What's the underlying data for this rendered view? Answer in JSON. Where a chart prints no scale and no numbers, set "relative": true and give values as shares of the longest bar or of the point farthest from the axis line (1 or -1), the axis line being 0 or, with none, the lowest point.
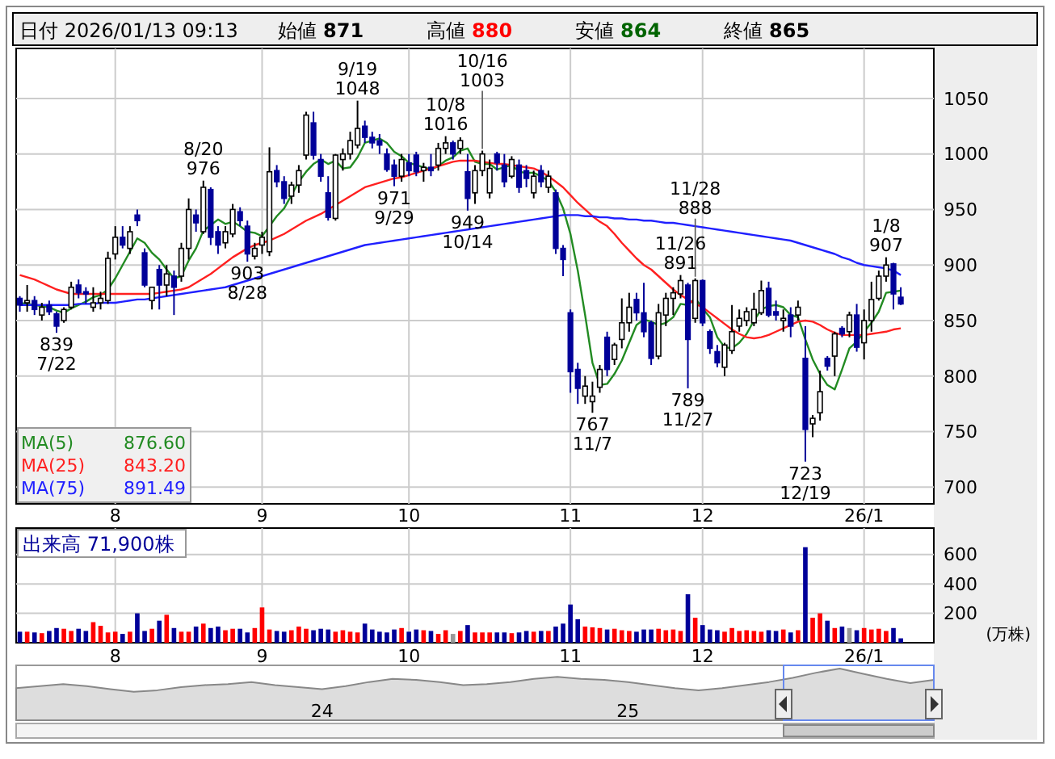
{
  "chart_data": [
    {
      "type": "candlestick",
      "title": "日付 2026/01/13 09:13",
      "colors": [
        "#000099",
        "#ffffff",
        "#000099",
        "#ffffff",
        "#000099",
        "#000099",
        "#ffffff",
        "#ffffff",
        "#000099",
        "#000099",
        "#ffffff",
        "#ffffff",
        "#ffffff",
        "#ffffff",
        "#000099",
        "#ffffff",
        "#000099",
        "#000099",
        "#ffffff",
        "#000099",
        "#ffffff",
        "#000099",
        "#ffffff",
        "#ffffff",
        "#000099",
        "#ffffff",
        "#000099",
        "#000099",
        "#ffffff",
        "#ffffff",
        "#000099",
        "#000099",
        "#ffffff",
        "#ffffff",
        "#ffffff",
        "#000099",
        "#000099",
        "#ffffff",
        "#ffffff",
        "#ffffff",
        "#000099",
        "#000099",
        "#000099",
        "#ffffff",
        "#ffffff",
        "#ffffff",
        "#ffffff",
        "#000099",
        "#000099",
        "#000099",
        "#000099",
        "#000099",
        "#ffffff",
        "#000099",
        "#000099",
        "#ffffff",
        "#000099",
        "#ffffff",
        "#ffffff",
        "#000099",
        "#ffffff",
        "#000099",
        "#ffffff",
        "#ffffff",
        "#ffffff",
        "#000099",
        "#000099",
        "#ffffff",
        "#000099",
        "#000099",
        "#ffffff",
        "#000099",
        "#ffffff",
        "#000099",
        "#000099",
        "#000099",
        "#000099",
        "#ffffff",
        "#ffffff",
        "#ffffff",
        "#000099",
        "#ffffff",
        "#ffffff",
        "#ffffff",
        "#000099",
        "#000099",
        "#000099",
        "#ffffff",
        "#ffffff",
        "#ffffff",
        "#ffffff",
        "#000099",
        "#ffffff",
        "#000099",
        "#000099",
        "#000099",
        "#ffffff",
        "#ffffff",
        "#ffffff",
        "#ffffff",
        "#ffffff",
        "#ffffff",
        "#000099",
        "#000099",
        "#ffffff",
        "#000099",
        "#ffffff",
        "#000099",
        "#ffffff",
        "#ffffff",
        "#000099",
        "#ffffff",
        "#000099",
        "#ffffff",
        "#000099",
        "#ffffff",
        "#ffffff",
        "#ffffff",
        "#ffffff",
        "#000099",
        "#000099"
      ],
      "grid": true,
      "ylim": [
        685,
        1095
      ],
      "yticks": [
        700,
        750,
        800,
        850,
        900,
        950,
        1000,
        1050
      ],
      "categories": [
        null,
        null,
        null,
        null,
        null,
        null,
        null,
        null,
        null,
        null,
        null,
        null,
        null,
        "8",
        null,
        null,
        null,
        null,
        null,
        null,
        null,
        null,
        null,
        null,
        null,
        null,
        null,
        null,
        null,
        null,
        null,
        null,
        null,
        "9",
        null,
        null,
        null,
        null,
        null,
        null,
        null,
        null,
        null,
        null,
        null,
        null,
        null,
        null,
        null,
        null,
        null,
        null,
        null,
        "10",
        null,
        null,
        null,
        null,
        null,
        null,
        null,
        null,
        null,
        null,
        null,
        null,
        null,
        null,
        null,
        null,
        null,
        null,
        null,
        null,
        null,
        "11",
        null,
        null,
        null,
        null,
        null,
        null,
        null,
        null,
        null,
        null,
        null,
        null,
        null,
        null,
        null,
        null,
        null,
        "12",
        null,
        null,
        null,
        null,
        null,
        null,
        null,
        null,
        null,
        null,
        null,
        null,
        null,
        null,
        null,
        null,
        null,
        null,
        null,
        null,
        null,
        "26/1",
        null,
        null,
        null,
        null,
        null
      ],
      "ohlc": [
        [
          870,
          872,
          858,
          864
        ],
        [
          866,
          882,
          858,
          868
        ],
        [
          868,
          872,
          855,
          860
        ],
        [
          855,
          866,
          850,
          862
        ],
        [
          864,
          868,
          855,
          858
        ],
        [
          856,
          858,
          839,
          845
        ],
        [
          850,
          862,
          848,
          860
        ],
        [
          862,
          885,
          860,
          880
        ],
        [
          882,
          887,
          870,
          875
        ],
        [
          876,
          880,
          865,
          874
        ],
        [
          862,
          880,
          858,
          866
        ],
        [
          866,
          876,
          860,
          870
        ],
        [
          868,
          912,
          865,
          906
        ],
        [
          910,
          935,
          905,
          925
        ],
        [
          925,
          935,
          915,
          918
        ],
        [
          915,
          935,
          910,
          930
        ],
        [
          945,
          950,
          935,
          940
        ],
        [
          911,
          915,
          880,
          882
        ],
        [
          868,
          880,
          860,
          880
        ],
        [
          896,
          900,
          860,
          882
        ],
        [
          882,
          900,
          872,
          892
        ],
        [
          890,
          895,
          855,
          880
        ],
        [
          890,
          920,
          885,
          915
        ],
        [
          915,
          960,
          905,
          950
        ],
        [
          945,
          950,
          930,
          938
        ],
        [
          930,
          976,
          928,
          970
        ],
        [
          968,
          970,
          918,
          925
        ],
        [
          930,
          935,
          910,
          918
        ],
        [
          920,
          935,
          915,
          930
        ],
        [
          928,
          955,
          925,
          950
        ],
        [
          948,
          952,
          935,
          940
        ],
        [
          935,
          940,
          903,
          910
        ],
        [
          908,
          920,
          905,
          915
        ],
        [
          918,
          930,
          910,
          925
        ],
        [
          912,
          1006,
          908,
          984
        ],
        [
          985,
          990,
          970,
          975
        ],
        [
          975,
          980,
          955,
          960
        ],
        [
          962,
          975,
          955,
          972
        ],
        [
          972,
          990,
          965,
          985
        ],
        [
          999,
          1038,
          995,
          1035
        ],
        [
          1028,
          1038,
          995,
          999
        ],
        [
          995,
          1000,
          975,
          980
        ],
        [
          965,
          980,
          940,
          943
        ],
        [
          942,
          1000,
          940,
          999
        ],
        [
          995,
          1005,
          985,
          1000
        ],
        [
          1000,
          1020,
          995,
          1012
        ],
        [
          1008,
          1048,
          1005,
          1023
        ],
        [
          1025,
          1030,
          1010,
          1015
        ],
        [
          1015,
          1020,
          1005,
          1010
        ],
        [
          1012,
          1018,
          1000,
          1008
        ],
        [
          1000,
          1005,
          984,
          986
        ],
        [
          990,
          995,
          971,
          980
        ],
        [
          980,
          1000,
          975,
          995
        ],
        [
          992,
          1000,
          980,
          985
        ],
        [
          999,
          1002,
          980,
          984
        ],
        [
          985,
          992,
          975,
          988
        ],
        [
          988,
          1000,
          980,
          985
        ],
        [
          990,
          1010,
          985,
          1005
        ],
        [
          1005,
          1016,
          1000,
          1010
        ],
        [
          1010,
          1012,
          995,
          1000
        ],
        [
          1005,
          1015,
          1000,
          1012
        ],
        [
          984,
          1000,
          949,
          960
        ],
        [
          965,
          990,
          955,
          985
        ],
        [
          985,
          1003,
          980,
          1000
        ],
        [
          965,
          995,
          960,
          987
        ],
        [
          1000,
          1002,
          985,
          992
        ],
        [
          990,
          1000,
          970,
          975
        ],
        [
          980,
          998,
          978,
          995
        ],
        [
          990,
          995,
          965,
          970
        ],
        [
          985,
          990,
          970,
          978
        ],
        [
          965,
          985,
          960,
          980
        ],
        [
          985,
          990,
          970,
          975
        ],
        [
          970,
          985,
          965,
          980
        ],
        [
          965,
          968,
          910,
          915
        ],
        [
          915,
          918,
          890,
          905
        ],
        [
          857,
          860,
          785,
          804
        ],
        [
          806,
          812,
          775,
          789
        ],
        [
          782,
          800,
          775,
          791
        ],
        [
          777,
          795,
          767,
          782
        ],
        [
          790,
          810,
          785,
          806
        ],
        [
          835,
          840,
          800,
          806
        ],
        [
          815,
          830,
          810,
          828
        ],
        [
          833,
          870,
          825,
          848
        ],
        [
          848,
          875,
          840,
          862
        ],
        [
          869,
          875,
          850,
          857
        ],
        [
          857,
          884,
          835,
          840
        ],
        [
          848,
          850,
          810,
          816
        ],
        [
          818,
          865,
          815,
          857
        ],
        [
          855,
          875,
          845,
          870
        ],
        [
          870,
          880,
          855,
          875
        ],
        [
          874,
          891,
          870,
          886
        ],
        [
          882,
          884,
          789,
          833
        ],
        [
          852,
          888,
          848,
          886
        ],
        [
          886,
          887,
          845,
          848
        ],
        [
          840,
          842,
          820,
          825
        ],
        [
          822,
          828,
          808,
          812
        ],
        [
          808,
          830,
          800,
          828
        ],
        [
          823,
          864,
          820,
          840
        ],
        [
          845,
          860,
          840,
          852
        ],
        [
          850,
          862,
          845,
          858
        ],
        [
          848,
          875,
          845,
          860
        ],
        [
          857,
          886,
          855,
          877
        ],
        [
          879,
          885,
          853,
          855
        ],
        [
          858,
          868,
          850,
          855
        ],
        [
          850,
          860,
          840,
          852
        ],
        [
          855,
          862,
          835,
          845
        ],
        [
          855,
          868,
          850,
          862
        ],
        [
          816,
          845,
          723,
          752
        ],
        [
          757,
          765,
          745,
          762
        ],
        [
          767,
          805,
          760,
          786
        ],
        [
          816,
          818,
          805,
          809
        ],
        [
          818,
          840,
          800,
          838
        ],
        [
          843,
          845,
          835,
          838
        ],
        [
          840,
          858,
          835,
          855
        ],
        [
          855,
          865,
          822,
          826
        ],
        [
          830,
          860,
          815,
          850
        ],
        [
          850,
          885,
          840,
          869
        ],
        [
          870,
          895,
          868,
          890
        ],
        [
          890,
          907,
          885,
          900
        ],
        [
          901,
          902,
          860,
          874
        ],
        [
          871,
          880,
          864,
          865
        ]
      ],
      "series": [
        {
          "type": "line",
          "name": "MA(5) 876.60",
          "color": "#228b22",
          "values": [
            866,
            865,
            864,
            863,
            862,
            859,
            857,
            861,
            864,
            867,
            871,
            873,
            878,
            888,
            900,
            912,
            924,
            920,
            911,
            905,
            896,
            888,
            890,
            904,
            915,
            931,
            936,
            941,
            937,
            939,
            935,
            930,
            929,
            926,
            935,
            944,
            951,
            963,
            975,
            984,
            991,
            995,
            991,
            994,
            987,
            988,
            997,
            1010,
            1012,
            1014,
            1010,
            1002,
            998,
            992,
            990,
            988,
            986,
            989,
            994,
            997,
            1003,
            1005,
            993,
            991,
            991,
            986,
            988,
            990,
            984,
            983,
            983,
            980,
            976,
            966,
            951,
            928,
            895,
            855,
            812,
            792,
            793,
            802,
            814,
            830,
            846,
            851,
            849,
            846,
            848,
            853,
            865,
            864,
            870,
            861,
            853,
            835,
            826,
            825,
            830,
            838,
            850,
            860,
            863,
            864,
            862,
            855,
            853,
            833,
            815,
            802,
            792,
            788,
            806,
            825,
            831,
            840,
            848,
            858,
            875,
            876,
            877
          ]
        },
        {
          "type": "line",
          "name": "MA(25) 843.20",
          "color": "#ff2020",
          "values": [
            891,
            889,
            887,
            884,
            881,
            878,
            876,
            874,
            874,
            874,
            874,
            874,
            874,
            874,
            874,
            874,
            874,
            874,
            874,
            875,
            876,
            877,
            878,
            880,
            884,
            888,
            892,
            897,
            902,
            907,
            911,
            915,
            918,
            920,
            922,
            925,
            928,
            932,
            936,
            940,
            943,
            946,
            950,
            954,
            958,
            962,
            966,
            970,
            972,
            974,
            976,
            978,
            979,
            981,
            983,
            985,
            987,
            989,
            991,
            993,
            994,
            994,
            994,
            993,
            992,
            991,
            991,
            990,
            989,
            988,
            987,
            984,
            980,
            975,
            970,
            963,
            956,
            950,
            944,
            939,
            935,
            928,
            920,
            913,
            906,
            900,
            896,
            890,
            884,
            878,
            873,
            869,
            865,
            862,
            857,
            852,
            847,
            842,
            838,
            835,
            834,
            835,
            837,
            840,
            843,
            846,
            849,
            850,
            849,
            846,
            842,
            839,
            837,
            837,
            837,
            837,
            838,
            839,
            840,
            842,
            843
          ]
        },
        {
          "type": "line",
          "name": "MA(75) 891.49",
          "color": "#2020ff",
          "values": [
            864,
            864,
            864,
            864,
            864,
            864,
            864,
            864,
            865,
            865,
            865,
            866,
            866,
            866,
            867,
            868,
            869,
            869,
            870,
            871,
            872,
            873,
            874,
            875,
            876,
            877,
            878,
            879,
            880,
            882,
            884,
            886,
            888,
            890,
            892,
            894,
            896,
            898,
            900,
            902,
            904,
            906,
            908,
            910,
            912,
            914,
            916,
            918,
            919,
            920,
            921,
            922,
            923,
            924,
            925,
            926,
            927,
            928,
            929,
            930,
            931,
            932,
            933,
            934,
            935,
            936,
            937,
            938,
            939,
            940,
            941,
            942,
            943,
            944,
            945,
            945,
            945,
            944,
            944,
            943,
            943,
            942,
            942,
            941,
            941,
            940,
            940,
            939,
            938,
            938,
            937,
            936,
            935,
            934,
            933,
            932,
            931,
            930,
            929,
            928,
            927,
            926,
            925,
            924,
            923,
            922,
            920,
            918,
            916,
            914,
            912,
            910,
            907,
            905,
            902,
            900,
            899,
            898,
            897,
            895,
            891
          ]
        }
      ],
      "annotations": [
        "始値 871",
        "高値 880",
        "安値 864",
        "終値 865",
        {
          "text": "839 7/22",
          "y": 839
        },
        {
          "text": "8/20 976",
          "y": 976
        },
        {
          "text": "903 8/28",
          "y": 903
        },
        {
          "text": "9/19 1048",
          "y": 1048
        },
        {
          "text": "971 9/29",
          "y": 971
        },
        {
          "text": "10/8 1016",
          "y": 1016
        },
        {
          "text": "10/16 1003",
          "y": 1003
        },
        {
          "text": "949 10/14",
          "y": 949
        },
        {
          "text": "767 11/7",
          "y": 767
        },
        {
          "text": "11/26 891",
          "y": 891
        },
        {
          "text": "11/28 888",
          "y": 888
        },
        {
          "text": "789 11/27",
          "y": 789
        },
        {
          "text": "723 12/19",
          "y": 723
        },
        {
          "text": "1/8 907",
          "y": 907
        }
      ]
    },
    {
      "type": "bar",
      "title": "出来高 71,900株",
      "ylabel": "(万株)",
      "grid": true,
      "ylim": [
        0,
        780
      ],
      "yticks": [
        200,
        400,
        600
      ],
      "categories": [
        null,
        null,
        null,
        null,
        null,
        null,
        null,
        null,
        null,
        null,
        null,
        null,
        null,
        "8",
        null,
        null,
        null,
        null,
        null,
        null,
        null,
        null,
        null,
        null,
        null,
        null,
        null,
        null,
        null,
        null,
        null,
        null,
        null,
        "9",
        null,
        null,
        null,
        null,
        null,
        null,
        null,
        null,
        null,
        null,
        null,
        null,
        null,
        null,
        null,
        null,
        null,
        null,
        null,
        "10",
        null,
        null,
        null,
        null,
        null,
        null,
        null,
        null,
        null,
        null,
        null,
        null,
        null,
        null,
        null,
        null,
        null,
        null,
        null,
        null,
        null,
        "11",
        null,
        null,
        null,
        null,
        null,
        null,
        null,
        null,
        null,
        null,
        null,
        null,
        null,
        null,
        null,
        null,
        null,
        "12",
        null,
        null,
        null,
        null,
        null,
        null,
        null,
        null,
        null,
        null,
        null,
        null,
        null,
        null,
        null,
        null,
        null,
        null,
        null,
        null,
        null,
        "26/1",
        null,
        null,
        null,
        null,
        null
      ],
      "values": [
        75,
        75,
        70,
        65,
        80,
        100,
        95,
        80,
        95,
        80,
        140,
        115,
        70,
        75,
        60,
        75,
        200,
        80,
        95,
        150,
        190,
        100,
        75,
        75,
        110,
        130,
        100,
        110,
        85,
        95,
        95,
        70,
        100,
        240,
        90,
        80,
        75,
        85,
        110,
        95,
        85,
        95,
        90,
        75,
        85,
        75,
        70,
        130,
        90,
        75,
        70,
        90,
        100,
        75,
        90,
        85,
        80,
        60,
        85,
        60,
        80,
        120,
        70,
        70,
        70,
        70,
        70,
        65,
        70,
        80,
        75,
        80,
        80,
        110,
        130,
        260,
        160,
        110,
        105,
        100,
        90,
        95,
        85,
        80,
        75,
        90,
        90,
        95,
        85,
        90,
        80,
        330,
        170,
        120,
        90,
        85,
        75,
        100,
        80,
        85,
        80,
        75,
        85,
        80,
        90,
        70,
        85,
        650,
        170,
        200,
        150,
        100,
        110,
        100,
        85,
        100,
        90,
        95,
        80,
        100,
        30
      ],
      "colors": [
        "#000099",
        "#ff0000",
        "#000099",
        "#ff0000",
        "#000099",
        "#000099",
        "#ff0000",
        "#ff0000",
        "#000099",
        "#000099",
        "#ff0000",
        "#ff0000",
        "#ff0000",
        "#ff0000",
        "#000099",
        "#ff0000",
        "#000099",
        "#000099",
        "#ff0000",
        "#000099",
        "#ff0000",
        "#000099",
        "#ff0000",
        "#ff0000",
        "#000099",
        "#ff0000",
        "#000099",
        "#000099",
        "#ff0000",
        "#ff0000",
        "#000099",
        "#000099",
        "#ff0000",
        "#ff0000",
        "#ff0000",
        "#000099",
        "#000099",
        "#ff0000",
        "#ff0000",
        "#ff0000",
        "#000099",
        "#000099",
        "#000099",
        "#ff0000",
        "#ff0000",
        "#ff0000",
        "#ff0000",
        "#000099",
        "#000099",
        "#000099",
        "#000099",
        "#000099",
        "#ff0000",
        "#000099",
        "#000099",
        "#ff0000",
        "#000099",
        "#ff0000",
        "#ff0000",
        "#999999",
        "#ff0000",
        "#000099",
        "#ff0000",
        "#ff0000",
        "#ff0000",
        "#000099",
        "#000099",
        "#ff0000",
        "#000099",
        "#000099",
        "#ff0000",
        "#000099",
        "#ff0000",
        "#000099",
        "#000099",
        "#000099",
        "#000099",
        "#ff0000",
        "#ff0000",
        "#ff0000",
        "#000099",
        "#ff0000",
        "#ff0000",
        "#ff0000",
        "#000099",
        "#000099",
        "#000099",
        "#ff0000",
        "#ff0000",
        "#ff0000",
        "#ff0000",
        "#000099",
        "#ff0000",
        "#000099",
        "#000099",
        "#000099",
        "#ff0000",
        "#ff0000",
        "#ff0000",
        "#ff0000",
        "#ff0000",
        "#ff0000",
        "#000099",
        "#000099",
        "#ff0000",
        "#000099",
        "#ff0000",
        "#000099",
        "#ff0000",
        "#ff0000",
        "#000099",
        "#ff0000",
        "#000099",
        "#999999",
        "#000099",
        "#ff0000",
        "#ff0000",
        "#ff0000",
        "#ff0000",
        "#000099",
        "#000099"
      ]
    },
    {
      "type": "area",
      "relative": true,
      "tick_labels": "x",
      "color": "#888888",
      "categories": [
        null,
        null,
        null,
        null,
        null,
        null,
        null,
        null,
        null,
        null,
        null,
        null,
        null,
        "24",
        null,
        null,
        null,
        null,
        null,
        null,
        null,
        null,
        null,
        null,
        null,
        null,
        "25",
        null,
        null,
        null,
        null,
        null,
        null,
        null,
        null,
        null,
        null,
        null,
        null,
        null
      ],
      "values": [
        0.62,
        0.66,
        0.7,
        0.66,
        0.6,
        0.55,
        0.58,
        0.64,
        0.68,
        0.7,
        0.74,
        0.68,
        0.64,
        0.6,
        0.66,
        0.74,
        0.8,
        0.78,
        0.74,
        0.68,
        0.7,
        0.74,
        0.8,
        0.84,
        0.8,
        0.78,
        0.74,
        0.68,
        0.62,
        0.58,
        0.62,
        0.68,
        0.74,
        0.82,
        0.92,
        1.0,
        0.9,
        0.8,
        0.72,
        0.78
      ]
    }
  ]
}
